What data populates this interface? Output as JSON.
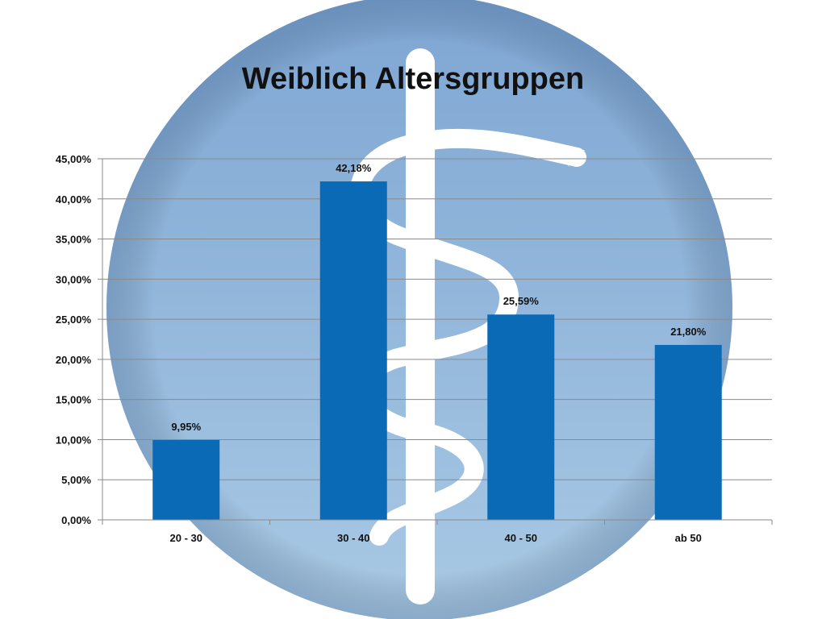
{
  "colors": {
    "bar": "#0a6ab6",
    "gridline": "#8a8a8a",
    "axis": "#8a8a8a",
    "emblem_disc_top": "#7ea6d3",
    "emblem_disc_bottom": "#a9c9e4",
    "emblem_staff": "#ffffff"
  },
  "background": {
    "emblem": "rod-of-asclepius-icon"
  },
  "chart_data": {
    "type": "bar",
    "title": "Weiblich Altersgruppen",
    "xlabel": "",
    "ylabel": "",
    "categories": [
      "20 - 30",
      "30 - 40",
      "40 - 50",
      "ab 50"
    ],
    "values": [
      9.95,
      42.18,
      25.59,
      21.8
    ],
    "data_labels": [
      "9,95%",
      "42,18%",
      "25,59%",
      "21,80%"
    ],
    "y_ticks": [
      0,
      5,
      10,
      15,
      20,
      25,
      30,
      35,
      40,
      45
    ],
    "y_tick_labels": [
      "0,00%",
      "5,00%",
      "10,00%",
      "15,00%",
      "20,00%",
      "25,00%",
      "30,00%",
      "35,00%",
      "40,00%",
      "45,00%"
    ],
    "ylim": [
      0,
      45
    ],
    "grid": true,
    "legend": "none"
  }
}
